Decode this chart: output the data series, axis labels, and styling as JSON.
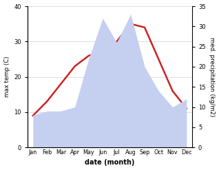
{
  "months": [
    "Jan",
    "Feb",
    "Mar",
    "Apr",
    "May",
    "Jun",
    "Jul",
    "Aug",
    "Sep",
    "Oct",
    "Nov",
    "Dec"
  ],
  "max_temp": [
    9,
    13,
    18,
    23,
    26,
    27,
    30,
    35,
    34,
    25,
    16,
    11
  ],
  "precipitation": [
    8,
    9,
    9,
    10,
    22,
    32,
    26,
    33,
    20,
    14,
    10,
    12
  ],
  "temp_color": "#cc2222",
  "precip_fill_color": "#c5cff0",
  "temp_ylim": [
    0,
    40
  ],
  "precip_ylim": [
    0,
    35
  ],
  "temp_yticks": [
    0,
    10,
    20,
    30,
    40
  ],
  "precip_yticks": [
    0,
    5,
    10,
    15,
    20,
    25,
    30,
    35
  ],
  "xlabel": "date (month)",
  "ylabel_left": "max temp (C)",
  "ylabel_right": "med. precipitation (kg/m2)",
  "background_color": "#ffffff"
}
